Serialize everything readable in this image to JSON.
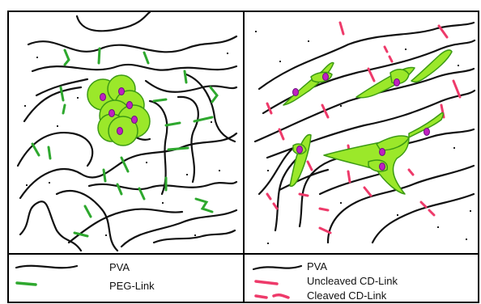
{
  "colors": {
    "pva": "#111111",
    "peg_link": "#2ea82e",
    "cd_link": "#ee3a6a",
    "cell_fill": "#9be82a",
    "cell_stroke": "#3c9a14",
    "nucleus_fill": "#c020c0",
    "nucleus_stroke": "#6a1080",
    "frame": "#000000"
  },
  "left_panel": {
    "legend": {
      "pva_label": "PVA",
      "link_label": "PEG-Link"
    }
  },
  "right_panel": {
    "legend": {
      "pva_label": "PVA",
      "uncleaved_label": "Uncleaved CD-Link",
      "cleaved_label": "Cleaved CD-Link"
    }
  }
}
